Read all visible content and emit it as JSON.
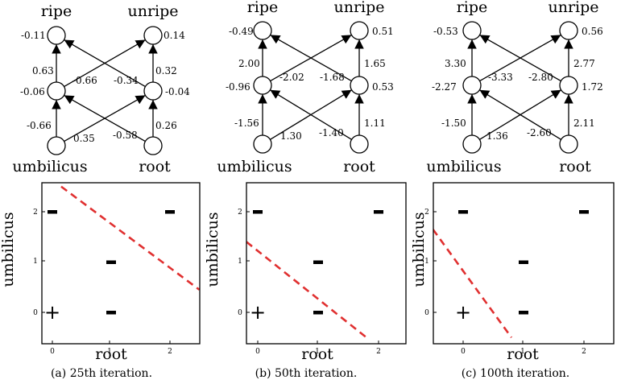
{
  "panels": [
    {
      "caption": "(a) 25th iteration.",
      "network": {
        "output_labels": [
          "ripe",
          "unripe"
        ],
        "input_labels": [
          "umbilicus",
          "root"
        ],
        "node_values": {
          "ripe": "-0.11",
          "unripe": "0.14",
          "hidden_left": "-0.06",
          "hidden_right": "-0.04"
        },
        "weights": {
          "hl_ripe": "0.63",
          "hl_unripe": "-0.66",
          "hr_ripe": "-0.34",
          "hr_unripe": "0.32",
          "umb_hl": "-0.66",
          "umb_hr": "0.35",
          "root_hl": "-0.58",
          "root_hr": "0.26"
        }
      },
      "plot": {
        "xlabel": "root",
        "ylabel": "umbilicus",
        "xticks": [
          "0",
          "1",
          "2"
        ],
        "yticks": [
          "0",
          "1",
          "2"
        ],
        "xlim": [
          -0.5,
          2.5
        ],
        "ylim": [
          -0.5,
          2.5
        ],
        "boundary": [
          [
            0.15,
            2.5
          ],
          [
            2.5,
            0.45
          ]
        ],
        "boundary_color": "#e03030",
        "points": [
          {
            "x": 0,
            "y": 0,
            "label": "+"
          },
          {
            "x": 1,
            "y": 0,
            "label": "-"
          },
          {
            "x": 1,
            "y": 1,
            "label": "-"
          },
          {
            "x": 0,
            "y": 2,
            "label": "-"
          },
          {
            "x": 2,
            "y": 2,
            "label": "-"
          }
        ]
      }
    },
    {
      "caption": "(b) 50th iteration.",
      "network": {
        "output_labels": [
          "ripe",
          "unripe"
        ],
        "input_labels": [
          "umbilicus",
          "root"
        ],
        "node_values": {
          "ripe": "-0.49",
          "unripe": "0.51",
          "hidden_left": "-0.96",
          "hidden_right": "0.53"
        },
        "weights": {
          "hl_ripe": "2.00",
          "hl_unripe": "-2.02",
          "hr_ripe": "-1.68",
          "hr_unripe": "1.65",
          "umb_hl": "-1.56",
          "umb_hr": "1.30",
          "root_hl": "-1.40",
          "root_hr": "1.11"
        }
      },
      "plot": {
        "xlabel": "root",
        "ylabel": "umbilicus",
        "xticks": [
          "0",
          "1",
          "2"
        ],
        "yticks": [
          "0",
          "1",
          "2"
        ],
        "xlim": [
          -0.5,
          2.5
        ],
        "ylim": [
          -0.5,
          2.5
        ],
        "boundary": [
          [
            -0.5,
            1.7
          ],
          [
            1.8,
            -0.5
          ]
        ],
        "boundary_color": "#e03030",
        "points": [
          {
            "x": 0,
            "y": 0,
            "label": "+"
          },
          {
            "x": 1,
            "y": 0,
            "label": "-"
          },
          {
            "x": 1,
            "y": 1,
            "label": "-"
          },
          {
            "x": 0,
            "y": 2,
            "label": "-"
          },
          {
            "x": 2,
            "y": 2,
            "label": "-"
          }
        ]
      }
    },
    {
      "caption": "(c) 100th iteration.",
      "network": {
        "output_labels": [
          "ripe",
          "unripe"
        ],
        "input_labels": [
          "umbilicus",
          "root"
        ],
        "node_values": {
          "ripe": "-0.53",
          "unripe": "0.56",
          "hidden_left": "-2.27",
          "hidden_right": "1.72"
        },
        "weights": {
          "hl_ripe": "3.30",
          "hl_unripe": "-3.33",
          "hr_ripe": "-2.80",
          "hr_unripe": "2.77",
          "umb_hl": "-1.50",
          "umb_hr": "1.36",
          "root_hl": "-2.60",
          "root_hr": "2.11"
        }
      },
      "plot": {
        "xlabel": "root",
        "ylabel": "umbilicus",
        "xticks": [
          "0",
          "1",
          "2"
        ],
        "yticks": [
          "0",
          "1",
          "2"
        ],
        "xlim": [
          -0.5,
          2.5
        ],
        "ylim": [
          -0.5,
          2.5
        ],
        "boundary": [
          [
            -0.5,
            1.65
          ],
          [
            0.8,
            -0.5
          ]
        ],
        "boundary_color": "#e03030",
        "points": [
          {
            "x": 0,
            "y": 0,
            "label": "+"
          },
          {
            "x": 1,
            "y": 0,
            "label": "-"
          },
          {
            "x": 1,
            "y": 1,
            "label": "-"
          },
          {
            "x": 0,
            "y": 2,
            "label": "-"
          },
          {
            "x": 2,
            "y": 2,
            "label": "-"
          }
        ]
      }
    }
  ]
}
